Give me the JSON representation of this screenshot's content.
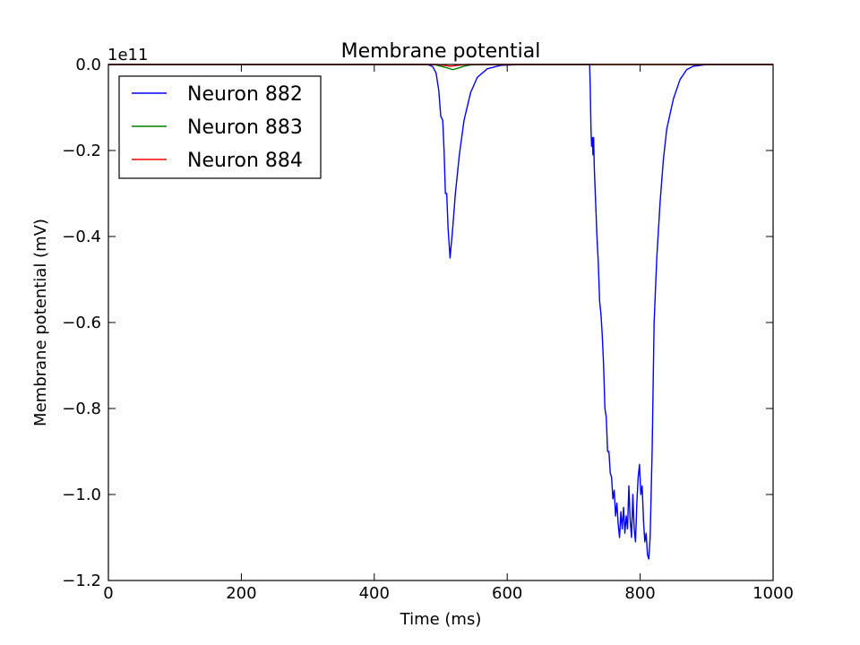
{
  "chart_data": {
    "type": "line",
    "title": "Membrane potential",
    "xlabel": "Time (ms)",
    "ylabel": "Membrane potential (mV)",
    "y_scale_factor": "1e11",
    "xlim": [
      0,
      1000
    ],
    "ylim": [
      -1.2,
      0.0
    ],
    "x_ticks": [
      0,
      200,
      400,
      600,
      800,
      1000
    ],
    "x_tick_labels": [
      "0",
      "200",
      "400",
      "600",
      "800",
      "1000"
    ],
    "y_ticks": [
      0.0,
      -0.2,
      -0.4,
      -0.6,
      -0.8,
      -1.0,
      -1.2
    ],
    "y_tick_labels": [
      "0.0",
      "−0.2",
      "−0.4",
      "−0.6",
      "−0.8",
      "−1.0",
      "−1.2"
    ],
    "grid": false,
    "legend_position": "top-left",
    "series": [
      {
        "name": "Neuron 882",
        "color": "#0000ff",
        "points": [
          [
            0,
            0.0
          ],
          [
            480,
            0.0
          ],
          [
            488,
            -0.005
          ],
          [
            493,
            -0.02
          ],
          [
            497,
            -0.06
          ],
          [
            500,
            -0.12
          ],
          [
            503,
            -0.13
          ],
          [
            505,
            -0.2
          ],
          [
            507,
            -0.3
          ],
          [
            509,
            -0.3
          ],
          [
            511,
            -0.38
          ],
          [
            514,
            -0.45
          ],
          [
            518,
            -0.38
          ],
          [
            522,
            -0.3
          ],
          [
            528,
            -0.21
          ],
          [
            535,
            -0.13
          ],
          [
            545,
            -0.065
          ],
          [
            555,
            -0.03
          ],
          [
            570,
            -0.01
          ],
          [
            590,
            -0.002
          ],
          [
            620,
            0.0
          ],
          [
            724,
            0.0
          ],
          [
            725,
            -0.06
          ],
          [
            726,
            -0.15
          ],
          [
            727,
            -0.19
          ],
          [
            728,
            -0.17
          ],
          [
            729,
            -0.21
          ],
          [
            730,
            -0.17
          ],
          [
            731,
            -0.24
          ],
          [
            733,
            -0.32
          ],
          [
            735,
            -0.4
          ],
          [
            737,
            -0.46
          ],
          [
            739,
            -0.55
          ],
          [
            741,
            -0.58
          ],
          [
            743,
            -0.63
          ],
          [
            745,
            -0.7
          ],
          [
            747,
            -0.8
          ],
          [
            749,
            -0.82
          ],
          [
            751,
            -0.9
          ],
          [
            753,
            -0.9
          ],
          [
            755,
            -0.95
          ],
          [
            757,
            -0.96
          ],
          [
            759,
            -1.01
          ],
          [
            761,
            -0.99
          ],
          [
            763,
            -1.05
          ],
          [
            765,
            -1.02
          ],
          [
            767,
            -1.07
          ],
          [
            769,
            -1.1
          ],
          [
            771,
            -1.04
          ],
          [
            773,
            -1.08
          ],
          [
            775,
            -1.03
          ],
          [
            777,
            -1.09
          ],
          [
            779,
            -1.05
          ],
          [
            781,
            -1.08
          ],
          [
            783,
            -0.98
          ],
          [
            785,
            -1.06
          ],
          [
            787,
            -1.1
          ],
          [
            789,
            -1.0
          ],
          [
            791,
            -1.08
          ],
          [
            793,
            -1.11
          ],
          [
            795,
            -1.02
          ],
          [
            797,
            -0.96
          ],
          [
            799,
            -0.93
          ],
          [
            801,
            -1.0
          ],
          [
            803,
            -0.98
          ],
          [
            805,
            -1.06
          ],
          [
            807,
            -1.11
          ],
          [
            809,
            -1.09
          ],
          [
            811,
            -1.14
          ],
          [
            813,
            -1.15
          ],
          [
            815,
            -1.1
          ],
          [
            818,
            -0.9
          ],
          [
            821,
            -0.6
          ],
          [
            825,
            -0.45
          ],
          [
            830,
            -0.32
          ],
          [
            835,
            -0.22
          ],
          [
            840,
            -0.15
          ],
          [
            850,
            -0.08
          ],
          [
            860,
            -0.035
          ],
          [
            870,
            -0.012
          ],
          [
            880,
            -0.004
          ],
          [
            900,
            0.0
          ],
          [
            1000,
            0.0
          ]
        ]
      },
      {
        "name": "Neuron 883",
        "color": "#008000",
        "points": [
          [
            0,
            0.0
          ],
          [
            490,
            0.0
          ],
          [
            500,
            -0.004
          ],
          [
            510,
            -0.008
          ],
          [
            518,
            -0.012
          ],
          [
            525,
            -0.009
          ],
          [
            535,
            -0.004
          ],
          [
            545,
            -0.001
          ],
          [
            560,
            0.0
          ],
          [
            1000,
            0.0
          ]
        ]
      },
      {
        "name": "Neuron 884",
        "color": "#ff0000",
        "points": [
          [
            0,
            0.0
          ],
          [
            495,
            0.0
          ],
          [
            505,
            -0.002
          ],
          [
            515,
            -0.004
          ],
          [
            525,
            -0.002
          ],
          [
            540,
            0.0
          ],
          [
            1000,
            0.0
          ]
        ]
      }
    ]
  }
}
